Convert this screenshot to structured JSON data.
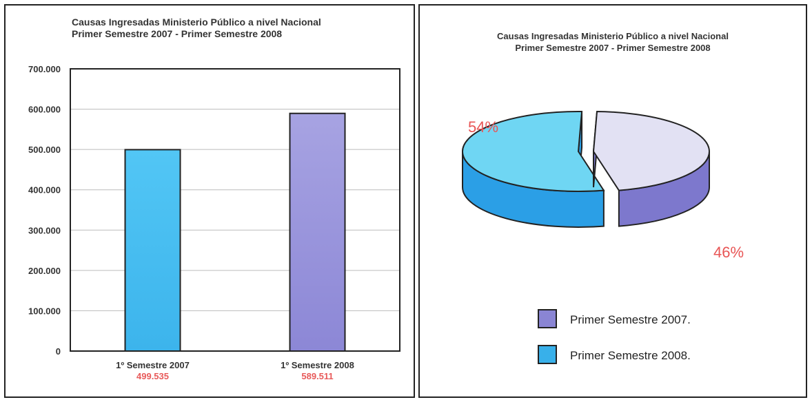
{
  "chart_data": [
    {
      "type": "bar",
      "title": [
        "Causas Ingresadas Ministerio Público a nivel Nacional",
        "Primer Semestre 2007 - Primer Semestre 2008"
      ],
      "categories": [
        "1º Semestre 2007",
        "1º Semestre 2008"
      ],
      "value_labels": [
        "499.535",
        "589.511"
      ],
      "values": [
        499535,
        589511
      ],
      "ylim": [
        0,
        700000
      ],
      "yticks": [
        "0",
        "100.000",
        "200.000",
        "300.000",
        "400.000",
        "500.000",
        "600.000",
        "700.000"
      ],
      "grid": true,
      "colors": [
        "#3cb4ec",
        "#8c87d6"
      ],
      "value_label_color": "#e85a5a"
    },
    {
      "type": "pie",
      "title": [
        "Causas Ingresadas Ministerio Público a nivel Nacional",
        "Primer Semestre 2007 - Primer Semestre 2008"
      ],
      "slices": [
        {
          "label": "Primer Semestre 2008.",
          "pct_label": "54%",
          "value": 54,
          "top_color": "#6fd6f3",
          "side_color": "#2b9fe6"
        },
        {
          "label": "Primer Semestre 2007.",
          "pct_label": "46%",
          "value": 46,
          "top_color": "#e2e1f3",
          "side_color": "#7d78cd"
        }
      ],
      "legend": [
        {
          "label": "Primer Semestre 2007.",
          "color": "#8a85d4"
        },
        {
          "label": "Primer Semestre 2008.",
          "color": "#38b0ea"
        }
      ],
      "pct_color": "#e85555"
    }
  ]
}
